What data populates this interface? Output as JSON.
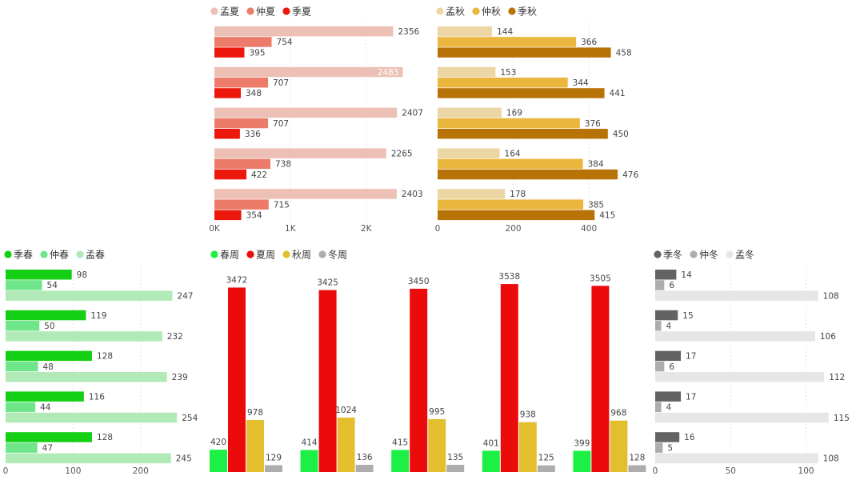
{
  "chart_data": [
    {
      "id": "summer",
      "type": "bar",
      "orientation": "horizontal",
      "legend": [
        "孟夏",
        "仲夏",
        "季夏"
      ],
      "colors": [
        "#ecc0b5",
        "#ec7b6a",
        "#ec180c"
      ],
      "series": [
        {
          "name": "孟夏",
          "values": [
            2356,
            2483,
            2407,
            2265,
            2403
          ]
        },
        {
          "name": "仲夏",
          "values": [
            754,
            707,
            707,
            738,
            715
          ]
        },
        {
          "name": "季夏",
          "values": [
            395,
            348,
            336,
            422,
            354
          ]
        }
      ],
      "xlim": [
        0,
        2800
      ],
      "ticks": [
        0,
        1000,
        2000
      ],
      "tick_labels": [
        "0K",
        "1K",
        "2K"
      ],
      "grid": true
    },
    {
      "id": "autumn",
      "type": "bar",
      "orientation": "horizontal",
      "legend": [
        "孟秋",
        "仲秋",
        "季秋"
      ],
      "colors": [
        "#ecd6a4",
        "#ebb63e",
        "#b87306"
      ],
      "series": [
        {
          "name": "孟秋",
          "values": [
            144,
            153,
            169,
            164,
            178
          ]
        },
        {
          "name": "仲秋",
          "values": [
            366,
            344,
            376,
            384,
            385
          ]
        },
        {
          "name": "季秋",
          "values": [
            458,
            441,
            450,
            476,
            415
          ]
        }
      ],
      "xlim": [
        0,
        520
      ],
      "ticks": [
        0,
        200,
        400
      ],
      "tick_labels": [
        "0",
        "200",
        "400"
      ],
      "grid": true
    },
    {
      "id": "spring",
      "type": "bar",
      "orientation": "horizontal",
      "legend": [
        "季春",
        "仲春",
        "孟春"
      ],
      "colors": [
        "#14cf14",
        "#6fe68a",
        "#b1eab6"
      ],
      "series": [
        {
          "name": "季春",
          "values": [
            98,
            119,
            128,
            116,
            128
          ]
        },
        {
          "name": "仲春",
          "values": [
            54,
            50,
            48,
            44,
            47
          ]
        },
        {
          "name": "孟春",
          "values": [
            247,
            232,
            239,
            254,
            245
          ]
        }
      ],
      "xlim": [
        0,
        275
      ],
      "ticks": [
        0,
        100,
        200
      ],
      "tick_labels": [
        "0",
        "100",
        "200"
      ],
      "grid": true
    },
    {
      "id": "weeks",
      "type": "bar",
      "orientation": "vertical",
      "legend": [
        "春周",
        "夏周",
        "秋周",
        "冬周"
      ],
      "colors": [
        "#1cf045",
        "#ec0b0b",
        "#e3bf2e",
        "#adadad"
      ],
      "series": [
        {
          "name": "春周",
          "values": [
            420,
            414,
            415,
            401,
            399
          ]
        },
        {
          "name": "夏周",
          "values": [
            3472,
            3425,
            3450,
            3538,
            3505
          ]
        },
        {
          "name": "秋周",
          "values": [
            978,
            1024,
            995,
            938,
            968
          ]
        },
        {
          "name": "冬周",
          "values": [
            129,
            136,
            135,
            125,
            128
          ]
        }
      ],
      "ylim": [
        0,
        3800
      ],
      "grid": false
    },
    {
      "id": "winter",
      "type": "bar",
      "orientation": "horizontal",
      "legend": [
        "季冬",
        "仲冬",
        "孟冬"
      ],
      "colors": [
        "#636363",
        "#adadad",
        "#e6e6e6"
      ],
      "series": [
        {
          "name": "季冬",
          "values": [
            14,
            15,
            17,
            17,
            16
          ]
        },
        {
          "name": "仲冬",
          "values": [
            6,
            4,
            6,
            4,
            5
          ]
        },
        {
          "name": "孟冬",
          "values": [
            108,
            106,
            112,
            115,
            108
          ]
        }
      ],
      "xlim": [
        0,
        122
      ],
      "ticks": [
        0,
        50,
        100
      ],
      "tick_labels": [
        "0",
        "50",
        "100"
      ],
      "grid": true
    }
  ]
}
